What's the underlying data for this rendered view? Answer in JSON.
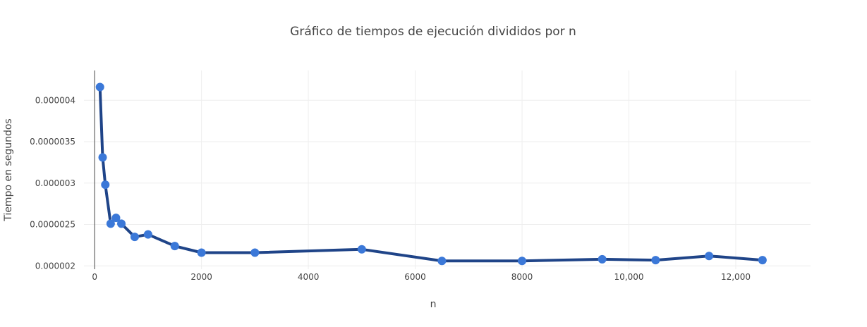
{
  "chart_data": {
    "type": "line",
    "title": "Gráfico de tiempos de ejecución divididos por n",
    "xlabel": "n",
    "ylabel": "Tiempo en segundos",
    "xlim": [
      -200,
      13400
    ],
    "ylim": [
      1.96e-06,
      4.36e-06
    ],
    "xticks": [
      0,
      2000,
      4000,
      6000,
      8000,
      10000,
      12000
    ],
    "xtick_labels": [
      "0",
      "2000",
      "4000",
      "6000",
      "8000",
      "10,000",
      "12,000"
    ],
    "yticks": [
      2e-06,
      2.5e-06,
      3e-06,
      3.5e-06,
      4e-06
    ],
    "ytick_labels": [
      "0.000002",
      "0.0000025",
      "0.000003",
      "0.0000035",
      "0.000004"
    ],
    "grid": true,
    "colors": {
      "line": "#1f4488",
      "marker": "#3b78d8"
    },
    "series": [
      {
        "x": [
          100,
          150,
          200,
          300,
          400,
          500,
          750,
          1000,
          1500,
          2000,
          3000,
          5000,
          6500,
          8000,
          9500,
          10500,
          11500,
          12500
        ],
        "y": [
          4.16e-06,
          3.31e-06,
          2.98e-06,
          2.51e-06,
          2.58e-06,
          2.51e-06,
          2.35e-06,
          2.38e-06,
          2.24e-06,
          2.16e-06,
          2.16e-06,
          2.2e-06,
          2.06e-06,
          2.06e-06,
          2.08e-06,
          2.07e-06,
          2.12e-06,
          2.07e-06
        ]
      }
    ]
  }
}
